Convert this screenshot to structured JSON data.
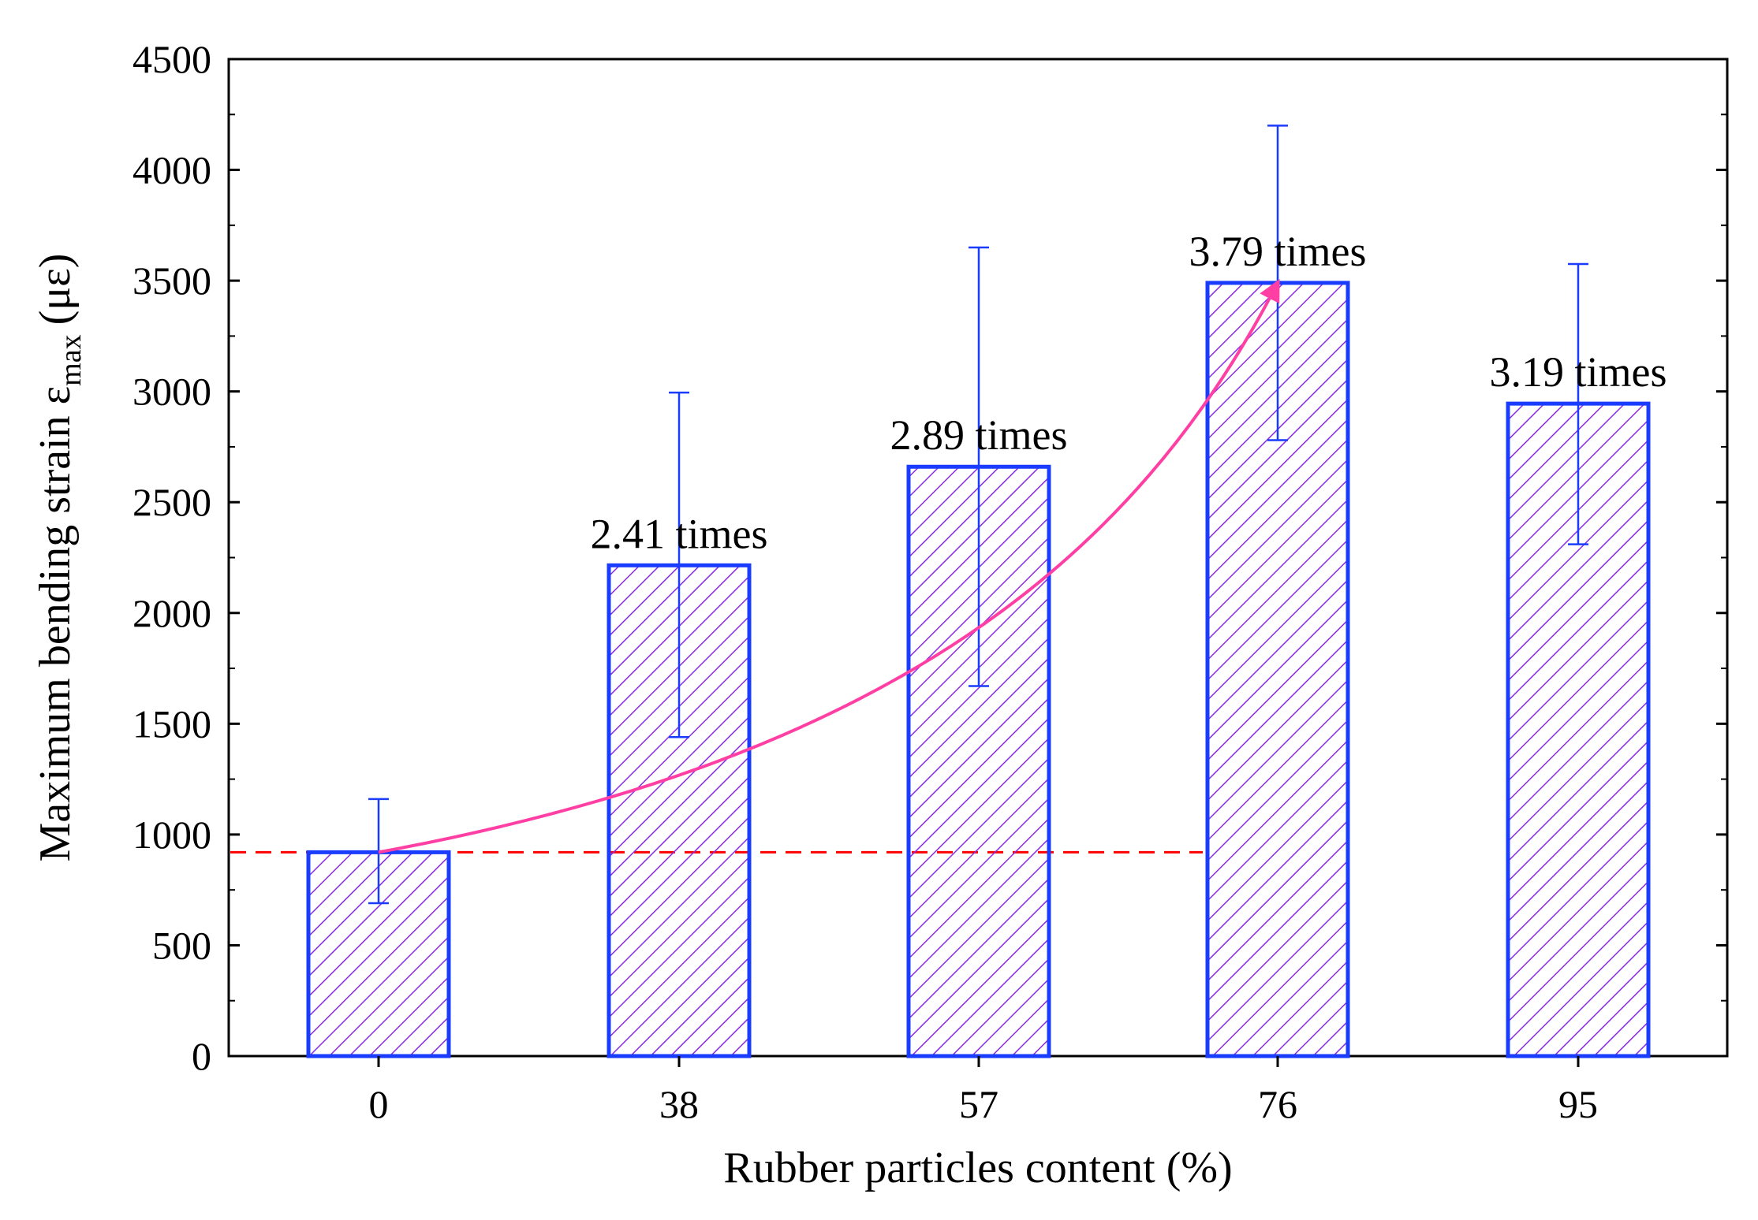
{
  "chart_data": {
    "type": "bar",
    "categories": [
      "0",
      "38",
      "57",
      "76",
      "95"
    ],
    "values": [
      920,
      2215,
      2660,
      3490,
      2945
    ],
    "errors": [
      {
        "low": 690,
        "high": 1160
      },
      {
        "low": 1440,
        "high": 2995
      },
      {
        "low": 1670,
        "high": 3650
      },
      {
        "low": 2780,
        "high": 4200
      },
      {
        "low": 2310,
        "high": 3575
      }
    ],
    "xlabel": "Rubber particles content (%)",
    "ylabel": {
      "main": "Maximum bending strain ε",
      "subscript": "max",
      "unit": "(με)"
    },
    "ylim": [
      0,
      4500
    ],
    "yticks": [
      "0",
      "500",
      "1000",
      "1500",
      "2000",
      "2500",
      "3000",
      "3500",
      "4000",
      "4500"
    ],
    "annotations": [
      {
        "category": "38",
        "text": "2.41 times"
      },
      {
        "category": "57",
        "text": "2.89 times"
      },
      {
        "category": "76",
        "text": "3.79 times"
      },
      {
        "category": "95",
        "text": "3.19 times"
      }
    ],
    "reference_line": {
      "value": 920,
      "style": "dashed",
      "color": "#ff0000"
    },
    "trend_arrow": {
      "from_category": "0",
      "to_category": "76",
      "color": "#ff3fa4"
    },
    "colors": {
      "bar_edge": "#1a3cff",
      "hatch": "#8a2be2",
      "error_bar": "#1a3cff",
      "axis": "#000000"
    },
    "grid": false
  }
}
